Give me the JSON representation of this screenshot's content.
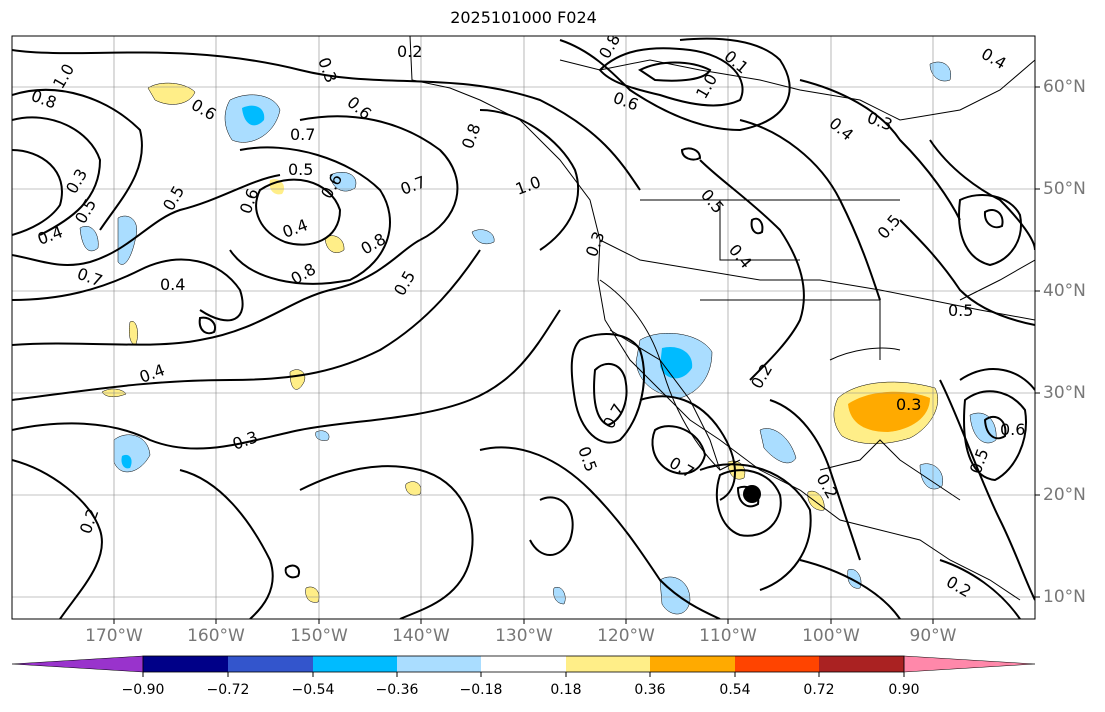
{
  "title": "2025101000 F024",
  "lon_labels": [
    "170°W",
    "160°W",
    "150°W",
    "140°W",
    "130°W",
    "120°W",
    "110°W",
    "100°W",
    "90°W"
  ],
  "lat_labels": [
    "60°N",
    "50°N",
    "40°N",
    "30°N",
    "20°N",
    "10°N"
  ],
  "colorbar": {
    "ticks": [
      "−0.90",
      "−0.72",
      "−0.54",
      "−0.36",
      "−0.18",
      "0.18",
      "0.36",
      "0.54",
      "0.72",
      "0.90"
    ],
    "colors": [
      "#9933cc",
      "#000088",
      "#3355cc",
      "#00bbff",
      "#aaddff",
      "#ffffff",
      "#ffee88",
      "#ffaa00",
      "#ff4400",
      "#aa2222",
      "#ff88aa"
    ]
  },
  "map": {
    "extent_lon": [
      -180,
      -80
    ],
    "extent_lat": [
      8,
      65
    ],
    "point_marker": {
      "lon": -107.5,
      "lat": 20
    }
  },
  "contour_labels": [
    "0.2",
    "0.3",
    "0.4",
    "0.5",
    "0.6",
    "0.7",
    "0.8",
    "1.0"
  ],
  "shading_colors": {
    "positive_light": "#ffee88",
    "positive_mid": "#ffaa00",
    "negative_light": "#aaddff",
    "negative_mid": "#00bbff"
  }
}
